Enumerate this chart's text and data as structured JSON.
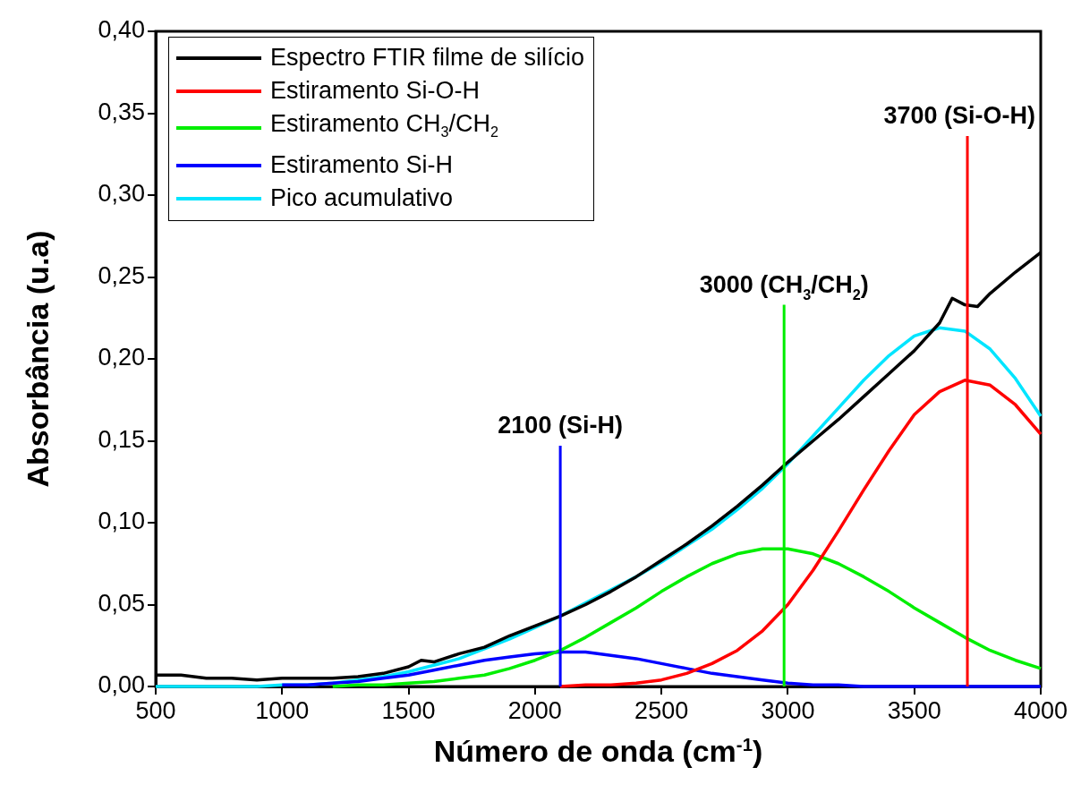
{
  "chart_data": {
    "type": "line",
    "xlabel": "Número de onda (cm$^{-1}$)",
    "ylabel": "Absorbância (u.a)",
    "x": [
      500,
      600,
      700,
      800,
      900,
      1000,
      1100,
      1200,
      1300,
      1400,
      1500,
      1600,
      1700,
      1800,
      1900,
      2000,
      2100,
      2200,
      2300,
      2400,
      2500,
      2600,
      2700,
      2800,
      2900,
      3000,
      3100,
      3200,
      3300,
      3400,
      3500,
      3600,
      3700,
      3800,
      3900,
      4000
    ],
    "series": [
      {
        "name": "Espectro FTIR filme de silício",
        "color": "#000000",
        "x": [
          500,
          600,
          700,
          800,
          900,
          1000,
          1100,
          1200,
          1300,
          1400,
          1500,
          1550,
          1600,
          1700,
          1800,
          1900,
          2000,
          2100,
          2200,
          2300,
          2400,
          2500,
          2600,
          2700,
          2800,
          2900,
          3000,
          3100,
          3200,
          3300,
          3400,
          3500,
          3600,
          3650,
          3700,
          3750,
          3800,
          3900,
          4000
        ],
        "values": [
          0.007,
          0.007,
          0.005,
          0.005,
          0.004,
          0.005,
          0.005,
          0.005,
          0.006,
          0.008,
          0.012,
          0.016,
          0.015,
          0.02,
          0.024,
          0.031,
          0.037,
          0.043,
          0.05,
          0.058,
          0.067,
          0.077,
          0.087,
          0.098,
          0.11,
          0.123,
          0.137,
          0.15,
          0.163,
          0.177,
          0.191,
          0.205,
          0.222,
          0.237,
          0.233,
          0.232,
          0.24,
          0.253,
          0.265
        ]
      },
      {
        "name": "Estiramento Si-O-H",
        "color": "#ff0000",
        "values": [
          null,
          null,
          null,
          null,
          null,
          null,
          null,
          null,
          null,
          null,
          null,
          null,
          null,
          null,
          null,
          null,
          0,
          0.001,
          0.001,
          0.002,
          0.004,
          0.008,
          0.014,
          0.022,
          0.034,
          0.05,
          0.071,
          0.095,
          0.12,
          0.144,
          0.166,
          0.18,
          0.187,
          0.184,
          0.172,
          0.154
        ]
      },
      {
        "name": "Estiramento CH$_{3}$/CH$_{2}$",
        "color": "#00ee00",
        "values": [
          null,
          null,
          null,
          null,
          null,
          null,
          null,
          0,
          0.001,
          0.001,
          0.002,
          0.003,
          0.005,
          0.007,
          0.011,
          0.016,
          0.022,
          0.03,
          0.039,
          0.048,
          0.058,
          0.067,
          0.075,
          0.081,
          0.084,
          0.084,
          0.081,
          0.075,
          0.067,
          0.058,
          0.048,
          0.039,
          0.03,
          0.022,
          0.016,
          0.011
        ]
      },
      {
        "name": "Estiramento Si-H",
        "color": "#0000ff",
        "values": [
          null,
          null,
          null,
          null,
          null,
          0.001,
          0.001,
          0.002,
          0.003,
          0.005,
          0.007,
          0.01,
          0.013,
          0.016,
          0.018,
          0.02,
          0.021,
          0.021,
          0.019,
          0.017,
          0.014,
          0.011,
          0.008,
          0.006,
          0.004,
          0.002,
          0.001,
          0.001,
          0,
          0,
          0,
          0,
          0,
          0,
          0,
          0
        ]
      },
      {
        "name": "Pico acumulativo",
        "color": "#00e5ff",
        "values": [
          0,
          0,
          0,
          0,
          0,
          0.001,
          0.001,
          0.002,
          0.004,
          0.006,
          0.009,
          0.013,
          0.017,
          0.023,
          0.029,
          0.036,
          0.043,
          0.051,
          0.059,
          0.067,
          0.076,
          0.086,
          0.096,
          0.108,
          0.121,
          0.136,
          0.153,
          0.17,
          0.187,
          0.202,
          0.214,
          0.219,
          0.217,
          0.206,
          0.188,
          0.165
        ]
      }
    ],
    "xlim": [
      500,
      4000
    ],
    "xticks": [
      500,
      1000,
      1500,
      2000,
      2500,
      3000,
      3500,
      4000
    ],
    "ylim": [
      0,
      0.4
    ],
    "yticks": [
      {
        "value": 0,
        "label": "0,00"
      },
      {
        "value": 0.05,
        "label": "0,05"
      },
      {
        "value": 0.1,
        "label": "0,10"
      },
      {
        "value": 0.15,
        "label": "0,15"
      },
      {
        "value": 0.2,
        "label": "0,20"
      },
      {
        "value": 0.25,
        "label": "0,25"
      },
      {
        "value": 0.3,
        "label": "0,30"
      },
      {
        "value": 0.35,
        "label": "0,35"
      },
      {
        "value": 0.4,
        "label": "0,40"
      }
    ],
    "ref_lines": [
      {
        "axis": "x",
        "value": 2100,
        "label": "2100 (Si-H)",
        "color": "#0000ff"
      },
      {
        "axis": "x",
        "value": 2985,
        "label": "3000 (CH$_{3}$/CH$_{2}$)",
        "color": "#00ee00"
      },
      {
        "axis": "x",
        "value": 3710,
        "label": "3700 (Si-O-H)",
        "color": "#ff0000"
      }
    ],
    "grid": false,
    "legend": "top left",
    "marker": "none",
    "line_style": "solid"
  }
}
